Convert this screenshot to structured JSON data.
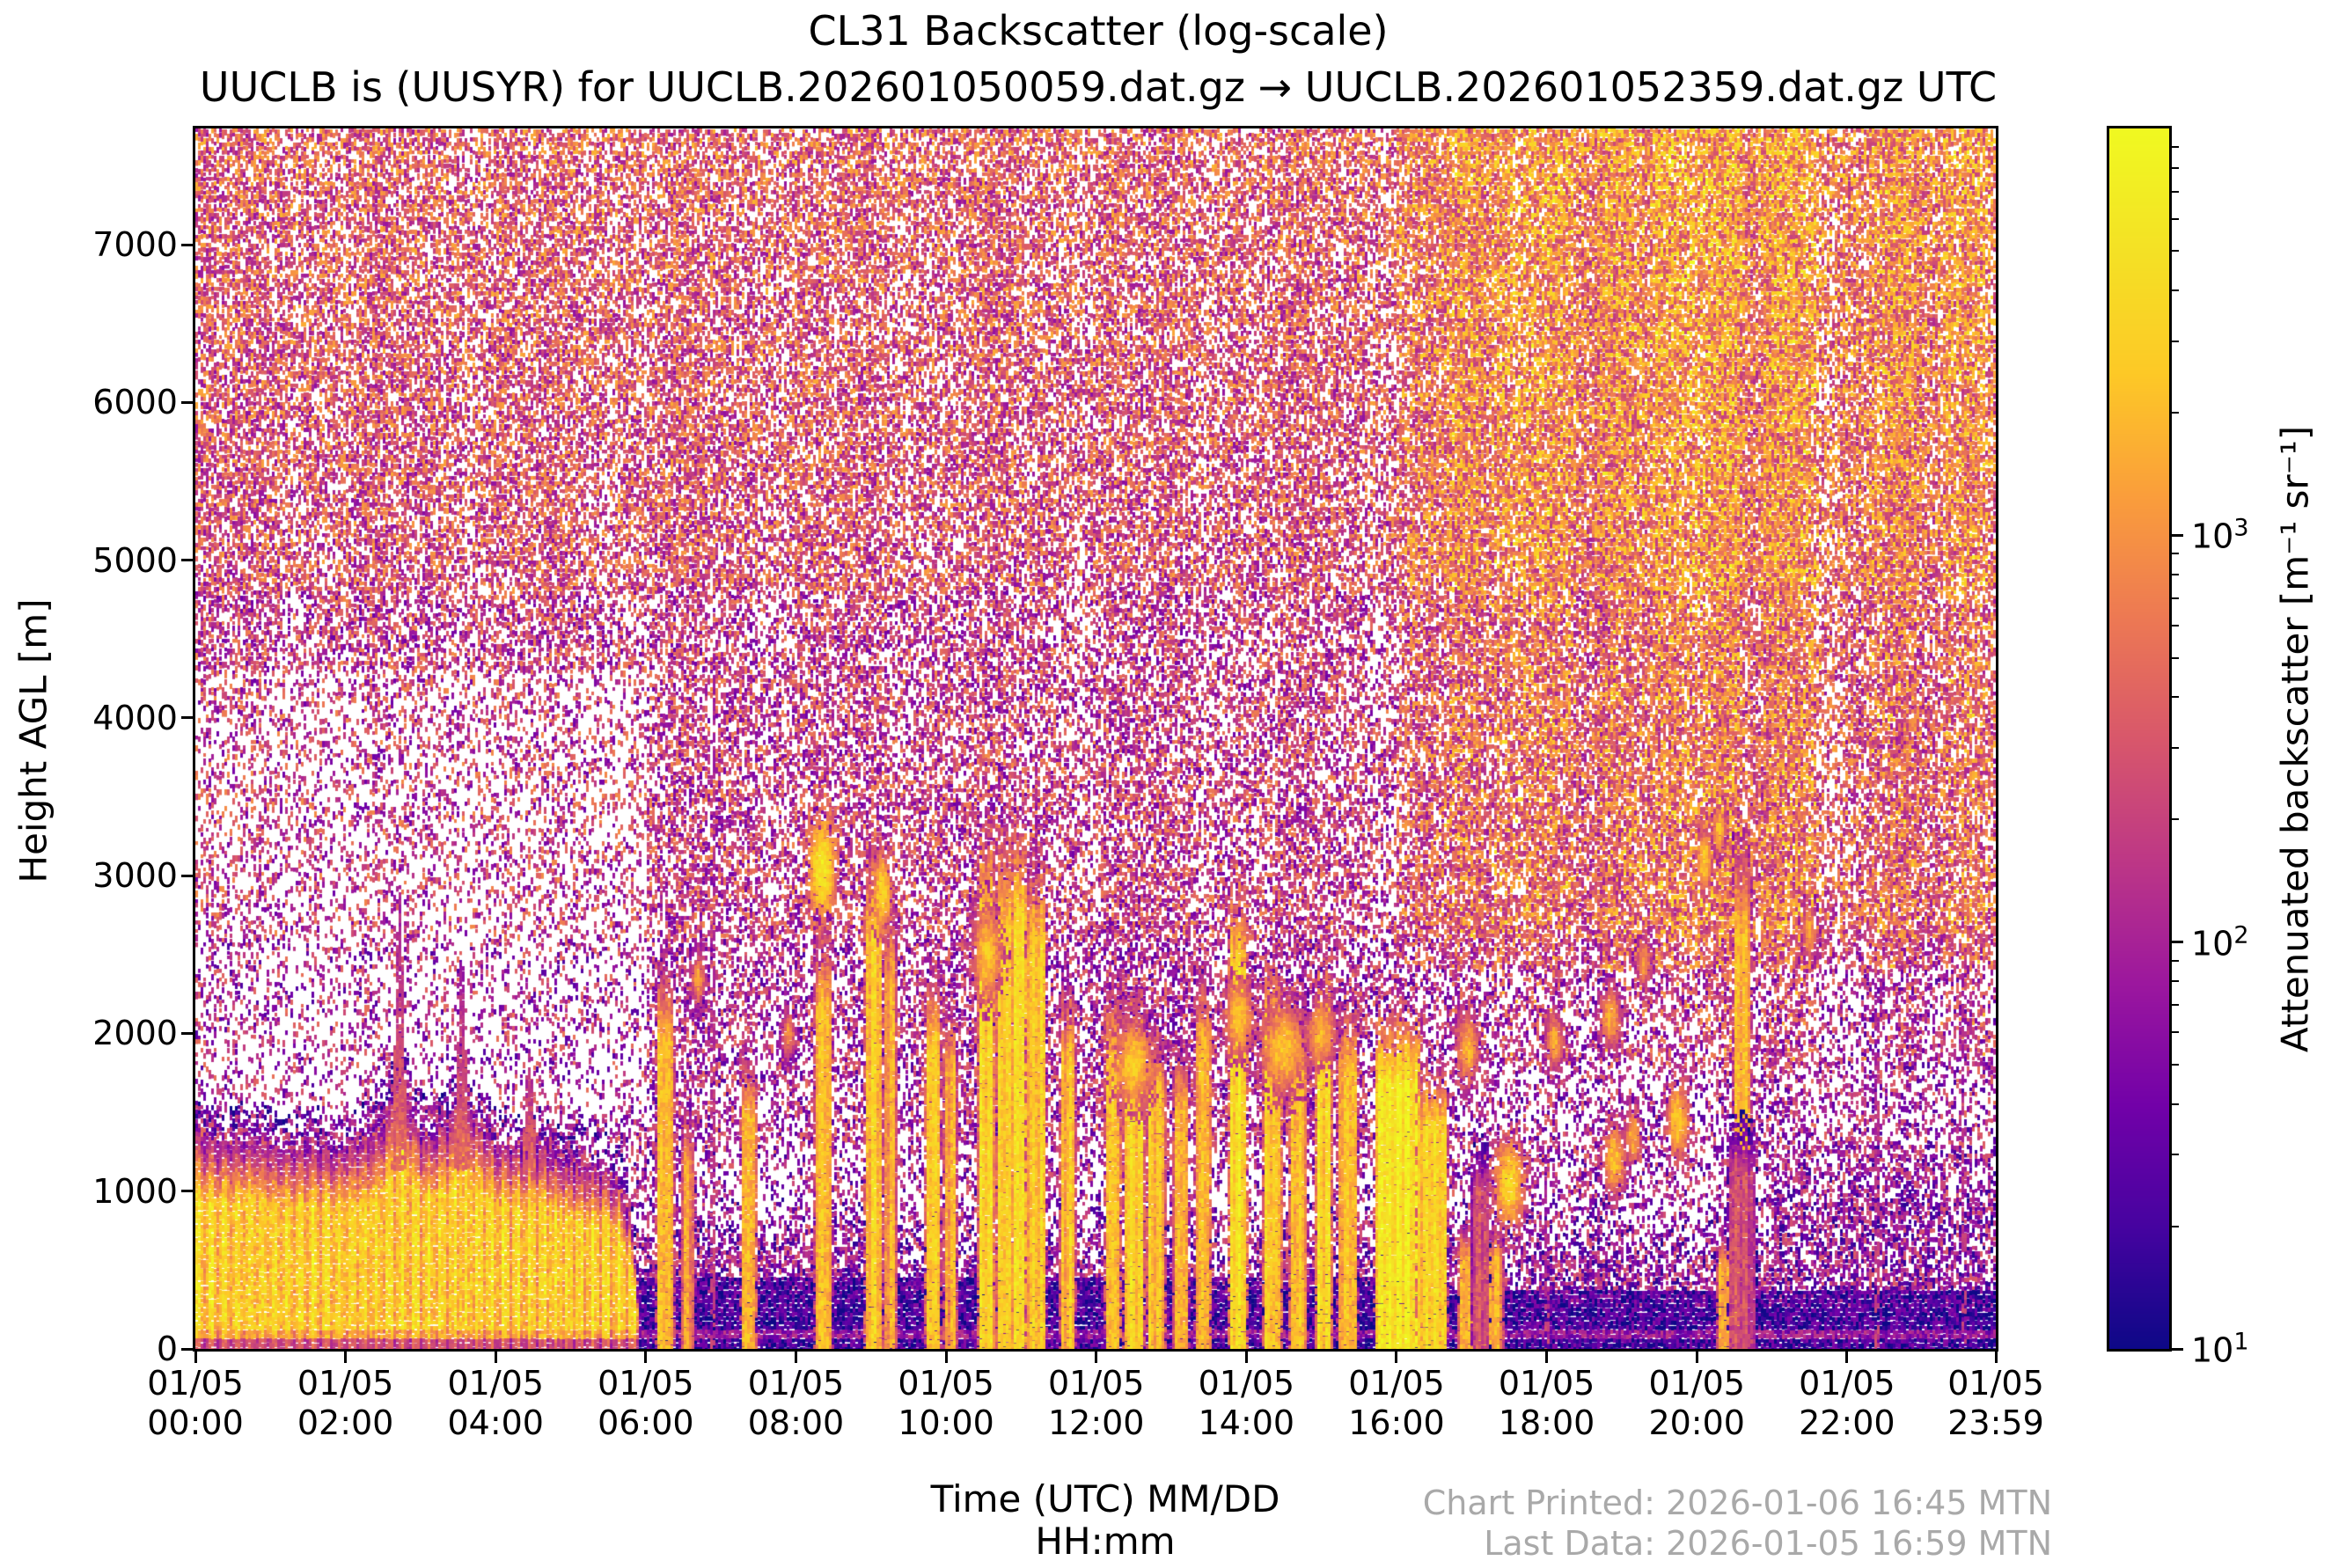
{
  "chart_data": {
    "type": "heatmap",
    "title": "CL31 Backscatter (log-scale)",
    "subtitle": "UUCLB is (UUSYR) for UUCLB.202601050059.dat.gz → UUCLB.202601052359.dat.gz UTC",
    "xlabel_lines": [
      "Time (UTC) MM/DD",
      "HH:mm"
    ],
    "ylabel": "Height AGL [m]",
    "xlim_hours": [
      0,
      23.983
    ],
    "ylim": [
      0,
      7737
    ],
    "grid": false,
    "x_ticks": [
      {
        "date": "01/05",
        "time": "00:00",
        "hour": 0
      },
      {
        "date": "01/05",
        "time": "02:00",
        "hour": 2
      },
      {
        "date": "01/05",
        "time": "04:00",
        "hour": 4
      },
      {
        "date": "01/05",
        "time": "06:00",
        "hour": 6
      },
      {
        "date": "01/05",
        "time": "08:00",
        "hour": 8
      },
      {
        "date": "01/05",
        "time": "10:00",
        "hour": 10
      },
      {
        "date": "01/05",
        "time": "12:00",
        "hour": 12
      },
      {
        "date": "01/05",
        "time": "14:00",
        "hour": 14
      },
      {
        "date": "01/05",
        "time": "16:00",
        "hour": 16
      },
      {
        "date": "01/05",
        "time": "18:00",
        "hour": 18
      },
      {
        "date": "01/05",
        "time": "20:00",
        "hour": 20
      },
      {
        "date": "01/05",
        "time": "22:00",
        "hour": 22
      },
      {
        "date": "01/05",
        "time": "23:59",
        "hour": 23.983
      }
    ],
    "y_ticks": [
      {
        "label": "0",
        "value": 0
      },
      {
        "label": "1000",
        "value": 1000
      },
      {
        "label": "2000",
        "value": 2000
      },
      {
        "label": "3000",
        "value": 3000
      },
      {
        "label": "4000",
        "value": 4000
      },
      {
        "label": "5000",
        "value": 5000
      },
      {
        "label": "6000",
        "value": 6000
      },
      {
        "label": "7000",
        "value": 7000
      }
    ],
    "colorbar": {
      "label": "Attenuated backscatter [m⁻¹ sr⁻¹]",
      "scale": "log",
      "range": [
        10,
        10000
      ],
      "ticks": [
        {
          "base": "10",
          "exp": "3",
          "value": 1000
        },
        {
          "base": "10",
          "exp": "2",
          "value": 100
        },
        {
          "base": "10",
          "exp": "1",
          "value": 10
        }
      ],
      "colormap": "plasma",
      "stops": [
        [
          0.0,
          "#0d0887"
        ],
        [
          0.1,
          "#4603a0"
        ],
        [
          0.2,
          "#7201a8"
        ],
        [
          0.3,
          "#9c179e"
        ],
        [
          0.4,
          "#bd3786"
        ],
        [
          0.5,
          "#d8576b"
        ],
        [
          0.6,
          "#ed7953"
        ],
        [
          0.7,
          "#fa9e3b"
        ],
        [
          0.8,
          "#fdc926"
        ],
        [
          0.9,
          "#f4e125"
        ],
        [
          1.0,
          "#f0f921"
        ]
      ]
    },
    "annotations": {
      "printed": "Chart Printed: 2026-01-06 16:45 MTN",
      "last_data": "Last Data: 2026-01-05 16:59 MTN"
    },
    "texture": {
      "boundary_layer": {
        "end_hour": 5.9,
        "top_profile": [
          [
            0,
            1380
          ],
          [
            0.4,
            1300
          ],
          [
            0.8,
            1330
          ],
          [
            1.1,
            1260
          ],
          [
            1.5,
            1290
          ],
          [
            1.9,
            1250
          ],
          [
            2.2,
            1300
          ],
          [
            2.45,
            1380
          ],
          [
            2.6,
            1520
          ],
          [
            2.75,
            1800
          ],
          [
            2.9,
            1450
          ],
          [
            3.1,
            1340
          ],
          [
            3.35,
            1430
          ],
          [
            3.55,
            1650
          ],
          [
            3.75,
            1450
          ],
          [
            4.0,
            1300
          ],
          [
            4.3,
            1260
          ],
          [
            4.6,
            1290
          ],
          [
            4.9,
            1190
          ],
          [
            5.2,
            1150
          ],
          [
            5.45,
            1120
          ],
          [
            5.65,
            1020
          ],
          [
            5.8,
            820
          ],
          [
            5.9,
            300
          ]
        ]
      },
      "dark_layer": {
        "start_hour": 5.85,
        "solid_top_m": 450,
        "solid_top_late_m": 370,
        "speckle_top_m": 950
      },
      "spikes": [
        [
          2.72,
          2900
        ],
        [
          3.55,
          2450
        ],
        [
          4.45,
          1900
        ]
      ],
      "faint_streaks": [
        [
          6.9,
          4600
        ],
        [
          11.2,
          3800
        ],
        [
          18.0,
          1200
        ],
        [
          22.4,
          2600
        ],
        [
          23.55,
          2400
        ]
      ],
      "columns": [
        [
          6.17,
          6.35,
          2450,
          3.3,
          0
        ],
        [
          6.5,
          6.62,
          1500,
          3.0,
          0
        ],
        [
          7.3,
          7.45,
          1850,
          3.3,
          0
        ],
        [
          8.28,
          8.45,
          2700,
          3.3,
          0
        ],
        [
          8.95,
          9.12,
          3300,
          3.4,
          0
        ],
        [
          9.2,
          9.32,
          2900,
          3.2,
          0
        ],
        [
          9.75,
          9.9,
          2400,
          3.4,
          0
        ],
        [
          10.0,
          10.12,
          2200,
          3.2,
          0
        ],
        [
          10.45,
          10.62,
          3350,
          3.5,
          0
        ],
        [
          10.7,
          10.85,
          3300,
          3.5,
          0
        ],
        [
          10.9,
          11.05,
          3350,
          3.6,
          0
        ],
        [
          11.1,
          11.3,
          3200,
          3.4,
          0
        ],
        [
          11.55,
          11.7,
          2300,
          3.3,
          0
        ],
        [
          12.15,
          12.3,
          2300,
          3.4,
          0
        ],
        [
          12.4,
          12.62,
          2250,
          3.5,
          0
        ],
        [
          12.7,
          12.9,
          2000,
          3.3,
          0
        ],
        [
          13.05,
          13.2,
          1900,
          3.2,
          0
        ],
        [
          13.35,
          13.5,
          2400,
          3.3,
          0
        ],
        [
          13.8,
          13.98,
          2950,
          3.6,
          0
        ],
        [
          14.25,
          14.45,
          2500,
          3.4,
          0
        ],
        [
          14.6,
          14.78,
          2200,
          3.3,
          0
        ],
        [
          14.95,
          15.12,
          2450,
          3.5,
          0
        ],
        [
          15.25,
          15.45,
          2200,
          3.3,
          0
        ],
        [
          15.75,
          16.3,
          2100,
          3.75,
          0
        ],
        [
          16.3,
          16.65,
          1750,
          3.5,
          0
        ],
        [
          16.85,
          17.4,
          700,
          3.2,
          0
        ],
        [
          20.3,
          20.6,
          650,
          3.2,
          0
        ],
        [
          20.52,
          20.7,
          3300,
          3.25,
          1200
        ],
        [
          20.45,
          20.75,
          1400,
          2.4,
          0
        ],
        [
          17.02,
          17.2,
          1250,
          2.45,
          0
        ]
      ],
      "blobs": [
        [
          8.35,
          3050,
          0.18,
          320,
          3.8
        ],
        [
          9.15,
          2900,
          0.12,
          250,
          3.6
        ],
        [
          10.55,
          2500,
          0.2,
          300,
          3.4
        ],
        [
          12.5,
          1800,
          0.25,
          260,
          3.5
        ],
        [
          13.9,
          2100,
          0.2,
          240,
          3.4
        ],
        [
          14.5,
          1900,
          0.3,
          280,
          3.4
        ],
        [
          15.0,
          2000,
          0.2,
          220,
          3.3
        ],
        [
          16.95,
          1900,
          0.15,
          220,
          3.3
        ],
        [
          17.5,
          1050,
          0.2,
          280,
          3.6
        ],
        [
          18.1,
          1950,
          0.12,
          180,
          3.2
        ],
        [
          18.85,
          2100,
          0.15,
          200,
          3.2
        ],
        [
          18.9,
          1200,
          0.15,
          220,
          3.4
        ],
        [
          19.15,
          1350,
          0.1,
          180,
          3.3
        ],
        [
          19.3,
          2450,
          0.1,
          160,
          3.1
        ],
        [
          19.75,
          1450,
          0.15,
          230,
          3.5
        ],
        [
          20.1,
          3100,
          0.1,
          180,
          3.5
        ],
        [
          20.3,
          3300,
          0.08,
          150,
          3.4
        ],
        [
          21.5,
          2650,
          0.1,
          170,
          3.2
        ],
        [
          6.7,
          2350,
          0.1,
          180,
          3.1
        ],
        [
          7.9,
          2000,
          0.1,
          160,
          3.0
        ]
      ],
      "bands": [
        [
          16.7,
          17.15,
          0.2
        ],
        [
          17.3,
          18.35,
          0.3
        ],
        [
          18.75,
          19.35,
          0.25
        ],
        [
          19.4,
          20.6,
          0.4
        ],
        [
          20.9,
          21.6,
          0.35
        ],
        [
          22.3,
          22.9,
          0.2
        ],
        [
          23.3,
          23.9,
          0.25
        ]
      ]
    }
  }
}
